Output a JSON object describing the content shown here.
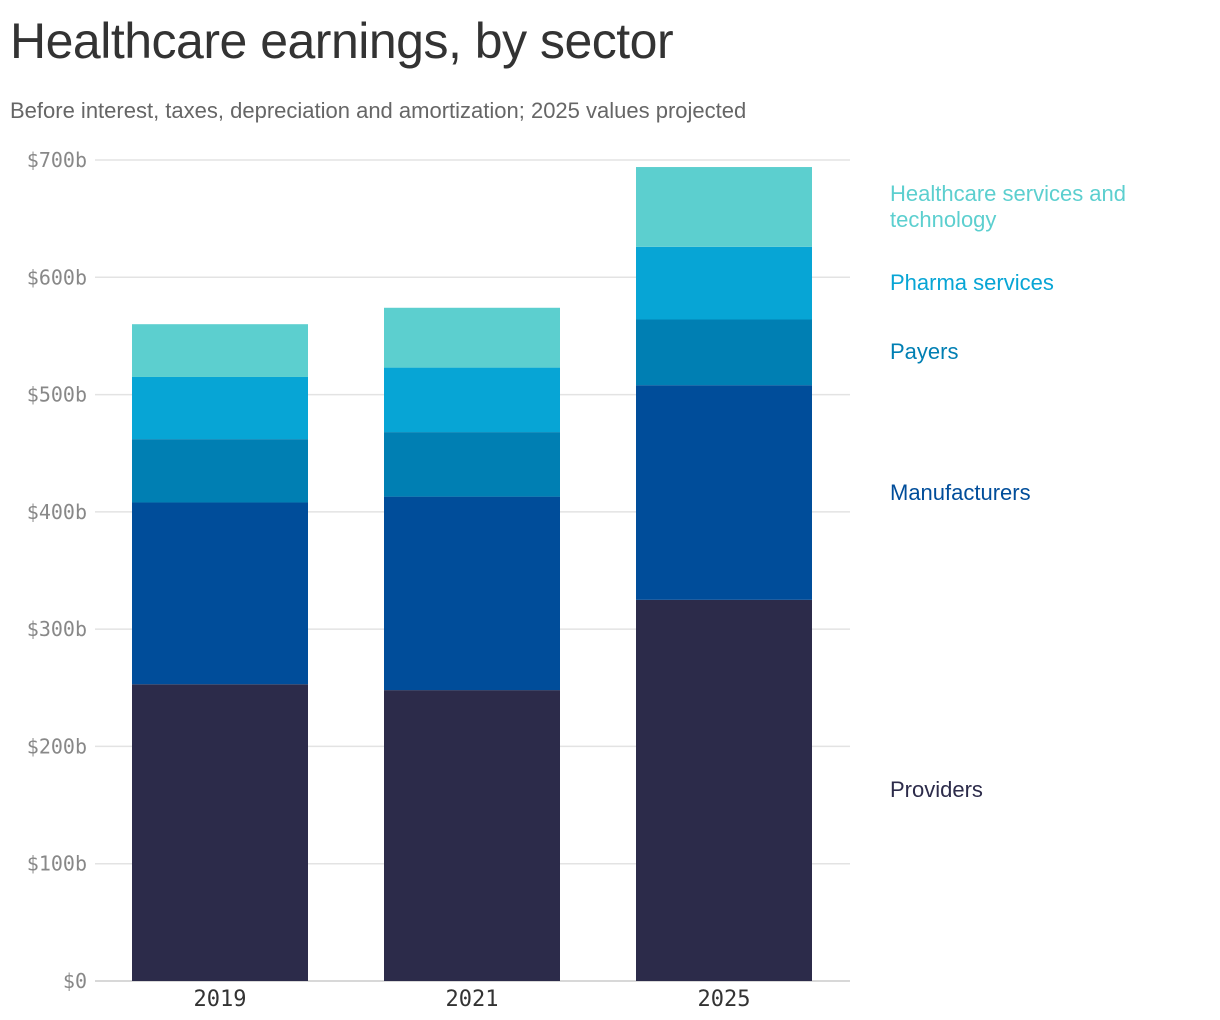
{
  "chart_data": {
    "type": "bar",
    "stacked": true,
    "title": "Healthcare earnings, by sector",
    "subtitle": "Before interest, taxes, depreciation and amortization; 2025 values projected",
    "categories": [
      "2019",
      "2021",
      "2025"
    ],
    "ylim": [
      0,
      700
    ],
    "yticks": [
      0,
      100,
      200,
      300,
      400,
      500,
      600,
      700
    ],
    "ytick_labels": [
      "$0",
      "$100b",
      "$200b",
      "$300b",
      "$400b",
      "$500b",
      "$600b",
      "$700b"
    ],
    "grid": true,
    "legend_position": "right",
    "series": [
      {
        "name": "Providers",
        "color": "#2c2b4a",
        "values": [
          253,
          248,
          325
        ]
      },
      {
        "name": "Manufacturers",
        "color": "#004d9a",
        "values": [
          155,
          165,
          183
        ]
      },
      {
        "name": "Payers",
        "color": "#007fb3",
        "values": [
          54,
          55,
          56
        ]
      },
      {
        "name": "Pharma services",
        "color": "#07a5d5",
        "values": [
          53,
          55,
          62
        ]
      },
      {
        "name": "Healthcare services and technology",
        "color": "#5ccfcf",
        "values": [
          45,
          51,
          68
        ]
      }
    ]
  }
}
